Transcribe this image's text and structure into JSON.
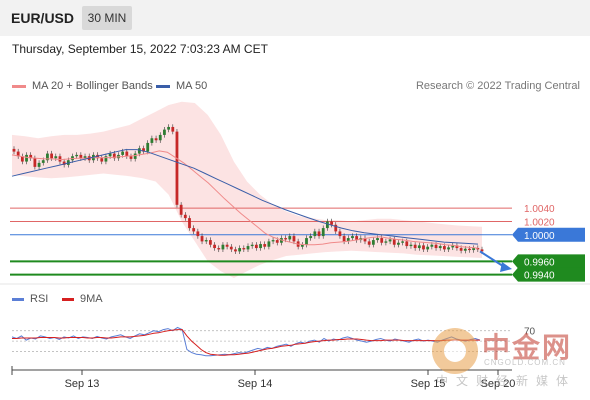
{
  "header": {
    "pair": "EUR/USD",
    "timeframe": "30 MIN"
  },
  "timestamp": "Thursday, September 15, 2022 7:03:23 AM CET",
  "legend": {
    "items": [
      {
        "label": "MA 20 + Bollinger Bands",
        "color": "#f08a8a"
      },
      {
        "label": "MA 50",
        "color": "#3a5ea8"
      }
    ],
    "credit": "Research © 2022 Trading Central"
  },
  "rsi_legend": {
    "items": [
      {
        "label": "RSI",
        "color": "#5b7fd6"
      },
      {
        "label": "9MA",
        "color": "#d62020"
      }
    ]
  },
  "watermark": {
    "cn": "中金网",
    "url": "CNGOLD.COM.CN",
    "tagline": "中文财经新媒体"
  },
  "chart_data": {
    "type": "candlestick",
    "y_range": [
      0.9932,
      1.0195
    ],
    "x_tick_labels": [
      "Sep 13",
      "Sep 14",
      "Sep 15",
      "Sep 20"
    ],
    "levels": [
      {
        "value": 1.004,
        "label": "1.0040",
        "kind": "resistance",
        "color": "#e06666"
      },
      {
        "value": 1.002,
        "label": "1.0020",
        "kind": "resistance",
        "color": "#e06666"
      },
      {
        "value": 1.0,
        "label": "1.0000",
        "kind": "pivot",
        "color": "#3a78d8"
      },
      {
        "value": 0.996,
        "label": "0.9960",
        "kind": "support",
        "color": "#1f8a1f"
      },
      {
        "value": 0.994,
        "label": "0.9940",
        "kind": "support",
        "color": "#1f8a1f"
      }
    ],
    "close": [
      1.0125,
      1.0118,
      1.011,
      1.012,
      1.0115,
      1.0102,
      1.0108,
      1.0112,
      1.0122,
      1.0115,
      1.0118,
      1.011,
      1.0105,
      1.0112,
      1.0118,
      1.012,
      1.0115,
      1.0118,
      1.0112,
      1.012,
      1.0115,
      1.011,
      1.0118,
      1.0122,
      1.0115,
      1.012,
      1.0125,
      1.0118,
      1.0114,
      1.0122,
      1.013,
      1.0125,
      1.0138,
      1.0145,
      1.0142,
      1.015,
      1.0158,
      1.0162,
      1.0155,
      1.0045,
      1.003,
      1.0025,
      1.001,
      1.0005,
      0.9998,
      0.999,
      0.9992,
      0.9985,
      0.998,
      0.9978,
      0.9985,
      0.9982,
      0.9978,
      0.9975,
      0.998,
      0.9978,
      0.9983,
      0.9985,
      0.998,
      0.9986,
      0.9982,
      0.999,
      0.9992,
      0.9988,
      0.9995,
      0.9993,
      0.9998,
      0.999,
      0.9982,
      0.9985,
      0.9995,
      0.9998,
      1.0005,
      0.9998,
      1.001,
      1.002,
      1.0015,
      1.0005,
      0.9998,
      0.999,
      0.9995,
      0.9998,
      0.9992,
      0.9995,
      0.999,
      0.9985,
      0.9992,
      0.9995,
      0.9988,
      0.999,
      0.9993,
      0.9985,
      0.9988,
      0.999,
      0.9983,
      0.9985,
      0.998,
      0.9984,
      0.9978,
      0.9982,
      0.9985,
      0.998,
      0.9983,
      0.9978,
      0.9981,
      0.9984,
      0.998,
      0.9976,
      0.9979,
      0.9977,
      0.998,
      0.9978,
      0.9975
    ],
    "ma20": [
      1.012,
      1.0118,
      1.0116,
      1.0115,
      1.0114,
      1.0114,
      1.0113,
      1.0114,
      1.0115,
      1.0115,
      1.0116,
      1.0116,
      1.0116,
      1.0117,
      1.0118,
      1.0119,
      1.0121,
      1.0123,
      1.0126,
      1.0124,
      1.0116,
      1.0108,
      1.0098,
      1.0088,
      1.0078,
      1.0066,
      1.0054,
      1.0043,
      1.0032,
      1.0022,
      1.0012,
      1.0002,
      0.9996,
      0.9992,
      0.9989,
      0.9986,
      0.9985,
      0.9985,
      0.9986,
      0.9988,
      0.9989,
      0.999,
      0.9992,
      0.9994,
      0.9996,
      0.9997,
      0.9995,
      0.9993,
      0.9992,
      0.999,
      0.9989,
      0.9988,
      0.9987,
      0.9985,
      0.9984,
      0.9982,
      0.9981,
      0.998
    ],
    "ma50": [
      1.0088,
      1.0092,
      1.0096,
      1.01,
      1.0104,
      1.0108,
      1.0112,
      1.0116,
      1.012,
      1.0124,
      1.0128,
      1.0128,
      1.0124,
      1.0118,
      1.0112,
      1.0106,
      1.01,
      1.0092,
      1.0084,
      1.0076,
      1.0068,
      1.006,
      1.0052,
      1.0045,
      1.0038,
      1.0032,
      1.0026,
      1.002,
      1.0015,
      1.001,
      1.0006,
      1.0003,
      1.0001,
      0.9999,
      0.9997,
      0.9995,
      0.9993,
      0.9991,
      0.9989,
      0.9988,
      0.9987,
      0.9986
    ],
    "bb_upper": [
      1.015,
      1.0148,
      1.0145,
      1.0148,
      1.015,
      1.015,
      1.0152,
      1.0155,
      1.016,
      1.0165,
      1.0175,
      1.0185,
      1.0195,
      1.02,
      1.0198,
      1.018,
      1.015,
      1.011,
      1.008,
      1.006,
      1.0045,
      1.0035,
      1.0028,
      1.0025,
      1.0022,
      1.0022,
      1.002,
      1.0022,
      1.0024,
      1.0024,
      1.0022,
      1.002,
      1.0018,
      1.0016,
      1.0014,
      1.0013,
      1.0012
    ],
    "bb_lower": [
      1.009,
      1.0088,
      1.0086,
      1.0085,
      1.0086,
      1.0088,
      1.009,
      1.0092,
      1.009,
      1.0088,
      1.0085,
      1.008,
      1.006,
      1.002,
      0.999,
      0.996,
      0.9945,
      0.9935,
      0.9945,
      0.9955,
      0.9962,
      0.9968,
      0.997,
      0.9972,
      0.9974,
      0.9975,
      0.9976,
      0.9975,
      0.9974,
      0.9973,
      0.9972,
      0.997,
      0.9969,
      0.9968,
      0.9967,
      0.9966,
      0.9965
    ],
    "forecast": {
      "from": 0.9975,
      "to": 0.995,
      "direction": "down"
    },
    "rsi": {
      "level_label": "70",
      "levels": [
        70,
        50,
        30
      ],
      "rsi": [
        58,
        55,
        60,
        52,
        56,
        54,
        60,
        58,
        55,
        57,
        53,
        58,
        56,
        60,
        55,
        58,
        57,
        55,
        59,
        56,
        54,
        58,
        60,
        62,
        58,
        55,
        60,
        64,
        62,
        66,
        70,
        68,
        72,
        74,
        70,
        76,
        72,
        34,
        28,
        25,
        24,
        22,
        22,
        23,
        24,
        25,
        24,
        26,
        28,
        27,
        30,
        33,
        36,
        34,
        38,
        36,
        40,
        42,
        44,
        40,
        45,
        48,
        46,
        50,
        52,
        48,
        55,
        50,
        54,
        52,
        56,
        58,
        55,
        52,
        50,
        48,
        50,
        53,
        55,
        52,
        50,
        54,
        52,
        50,
        48,
        52,
        54,
        50,
        52,
        50,
        48,
        52,
        55,
        58,
        54,
        52,
        50,
        53,
        55,
        52
      ],
      "ma9": [
        55,
        55,
        56,
        56,
        56,
        56,
        57,
        57,
        57,
        57,
        56,
        56,
        57,
        57,
        57,
        57,
        56,
        56,
        57,
        57,
        56,
        56,
        57,
        58,
        58,
        58,
        59,
        60,
        61,
        63,
        65,
        66,
        68,
        70,
        71,
        72,
        72,
        60,
        50,
        42,
        34,
        28,
        25,
        24,
        23,
        23,
        24,
        24,
        25,
        26,
        27,
        29,
        31,
        33,
        35,
        36,
        38,
        40,
        41,
        42,
        44,
        45,
        46,
        48,
        49,
        50,
        51,
        52,
        52,
        53,
        53,
        54,
        54,
        54,
        53,
        52,
        51,
        51,
        51,
        52,
        52,
        52,
        52,
        51,
        51,
        51,
        51,
        51,
        51,
        51,
        51,
        51,
        52,
        52,
        52,
        52,
        52,
        52,
        52,
        52
      ]
    }
  }
}
